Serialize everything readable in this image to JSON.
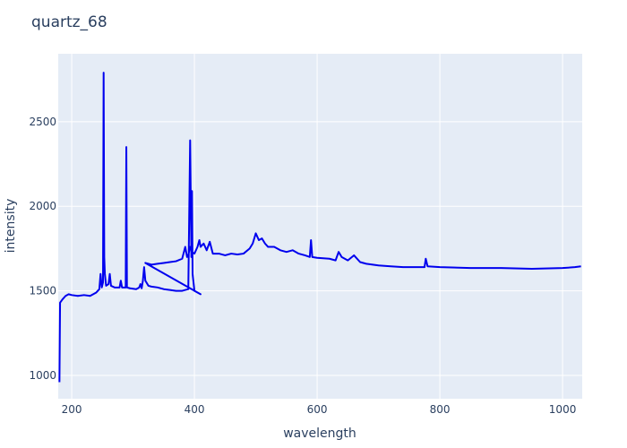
{
  "chart_data": {
    "type": "line",
    "title": "quartz_68",
    "x_label": "wavelength",
    "y_label": "intensity",
    "xlim": [
      178,
      1032
    ],
    "ylim": [
      862,
      2902
    ],
    "xticks": [
      200,
      400,
      600,
      800,
      1000
    ],
    "yticks": [
      1000,
      1500,
      2000,
      2500
    ],
    "grid": true,
    "series": [
      {
        "color": "#0000ee",
        "x": [
          180,
          181,
          185,
          190,
          195,
          200,
          210,
          220,
          230,
          240,
          245,
          247,
          249,
          251,
          252,
          253,
          254,
          256,
          260,
          262,
          264,
          270,
          278,
          280,
          282,
          288,
          289,
          290,
          295,
          305,
          310,
          312,
          314,
          316,
          318,
          320,
          325,
          330,
          340,
          350,
          360,
          370,
          380,
          390,
          393,
          395,
          396,
          397,
          400,
          405,
          410,
          320,
          330,
          340,
          350,
          360,
          370,
          380,
          385,
          388,
          390,
          393,
          396,
          400,
          405,
          408,
          410,
          415,
          420,
          425,
          430,
          440,
          450,
          460,
          470,
          480,
          490,
          495,
          500,
          505,
          510,
          515,
          520,
          530,
          540,
          550,
          560,
          570,
          580,
          588,
          590,
          592,
          600,
          620,
          630,
          635,
          640,
          650,
          660,
          670,
          680,
          700,
          720,
          740,
          760,
          775,
          777,
          780,
          800,
          850,
          900,
          950,
          1000,
          1020,
          1030
        ],
        "values": [
          960,
          1430,
          1450,
          1470,
          1480,
          1475,
          1470,
          1475,
          1470,
          1490,
          1510,
          1600,
          1520,
          1550,
          2790,
          1700,
          1600,
          1530,
          1540,
          1600,
          1530,
          1520,
          1520,
          1560,
          1520,
          1520,
          2350,
          1520,
          1515,
          1510,
          1520,
          1540,
          1515,
          1560,
          1640,
          1560,
          1530,
          1525,
          1520,
          1510,
          1505,
          1500,
          1500,
          1510,
          2390,
          1700,
          2090,
          1600,
          1500,
          1490,
          1480,
          1665,
          1655,
          1660,
          1665,
          1670,
          1675,
          1690,
          1760,
          1700,
          1710,
          1760,
          1730,
          1720,
          1760,
          1800,
          1760,
          1780,
          1740,
          1790,
          1720,
          1720,
          1710,
          1720,
          1715,
          1720,
          1750,
          1780,
          1840,
          1800,
          1810,
          1780,
          1760,
          1760,
          1740,
          1730,
          1740,
          1720,
          1710,
          1700,
          1800,
          1700,
          1695,
          1690,
          1680,
          1730,
          1700,
          1680,
          1710,
          1670,
          1660,
          1650,
          1645,
          1640,
          1640,
          1640,
          1690,
          1645,
          1640,
          1635,
          1635,
          1630,
          1635,
          1640,
          1645
        ]
      }
    ]
  }
}
